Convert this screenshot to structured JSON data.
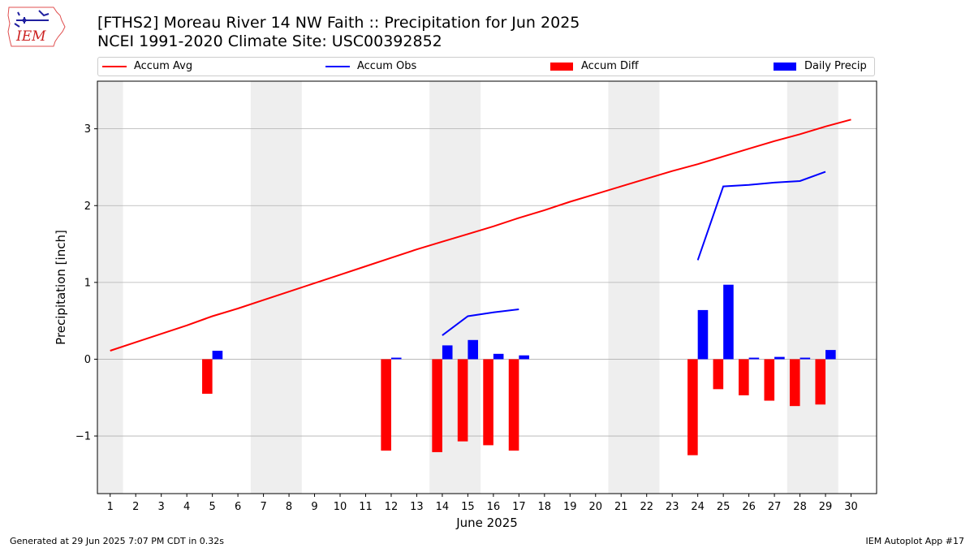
{
  "header": {
    "title_line1": "[FTHS2] Moreau River 14 NW Faith :: Precipitation for Jun 2025",
    "title_line2": "NCEI 1991-2020 Climate Site: USC00392852",
    "logo_text": "IEM"
  },
  "footer": {
    "left": "Generated at 29 Jun 2025 7:07 PM CDT in 0.32s",
    "right": "IEM Autoplot App #17"
  },
  "chart_data": {
    "type": "bar",
    "title": "[FTHS2] Moreau River 14 NW Faith :: Precipitation for Jun 2025",
    "subtitle": "NCEI 1991-2020 Climate Site: USC00392852",
    "xlabel": "June 2025",
    "ylabel": "Precipitation [inch]",
    "xlim": [
      0.5,
      31
    ],
    "ylim": [
      -1.75,
      3.62
    ],
    "yticks": [
      -1,
      0,
      1,
      2,
      3
    ],
    "ytick_labels": [
      "−1",
      "0",
      "1",
      "2",
      "3"
    ],
    "x": [
      1,
      2,
      3,
      4,
      5,
      6,
      7,
      8,
      9,
      10,
      11,
      12,
      13,
      14,
      15,
      16,
      17,
      18,
      19,
      20,
      21,
      22,
      23,
      24,
      25,
      26,
      27,
      28,
      29,
      30
    ],
    "grid": true,
    "legend_position": "top",
    "weekend_days": [
      1,
      7,
      8,
      14,
      15,
      21,
      22,
      28,
      29
    ],
    "colors": {
      "accum_avg": "#ff0000",
      "accum_obs": "#0000ff",
      "accum_diff": "#ff0000",
      "daily_precip": "#0000ff",
      "weekend_shade": "#eeeeee",
      "grid": "#b0b0b0"
    },
    "series": [
      {
        "name": "Accum Avg",
        "kind": "line",
        "values": [
          0.11,
          0.22,
          0.33,
          0.44,
          0.56,
          0.66,
          0.77,
          0.88,
          0.99,
          1.1,
          1.21,
          1.32,
          1.43,
          1.53,
          1.63,
          1.73,
          1.84,
          1.94,
          2.05,
          2.15,
          2.25,
          2.35,
          2.45,
          2.54,
          2.64,
          2.74,
          2.84,
          2.93,
          3.03,
          3.12
        ]
      },
      {
        "name": "Accum Obs",
        "kind": "line",
        "values": [
          null,
          null,
          null,
          null,
          null,
          null,
          null,
          null,
          null,
          null,
          null,
          null,
          null,
          0.31,
          0.56,
          0.61,
          0.65,
          null,
          null,
          null,
          null,
          null,
          null,
          1.29,
          2.25,
          2.27,
          2.3,
          2.32,
          2.44,
          null
        ]
      },
      {
        "name": "Accum Diff",
        "kind": "bar",
        "values": [
          null,
          null,
          null,
          null,
          -0.45,
          null,
          null,
          null,
          null,
          null,
          null,
          -1.19,
          null,
          -1.21,
          -1.07,
          -1.12,
          -1.19,
          null,
          null,
          null,
          null,
          null,
          null,
          -1.25,
          -0.39,
          -0.47,
          -0.54,
          -0.61,
          -0.59,
          null
        ]
      },
      {
        "name": "Daily Precip",
        "kind": "bar",
        "values": [
          null,
          null,
          null,
          null,
          0.11,
          null,
          null,
          null,
          null,
          null,
          null,
          0.02,
          null,
          0.18,
          0.25,
          0.07,
          0.05,
          null,
          null,
          null,
          null,
          null,
          null,
          0.64,
          0.97,
          0.02,
          0.03,
          0.02,
          0.12,
          null
        ]
      }
    ]
  }
}
